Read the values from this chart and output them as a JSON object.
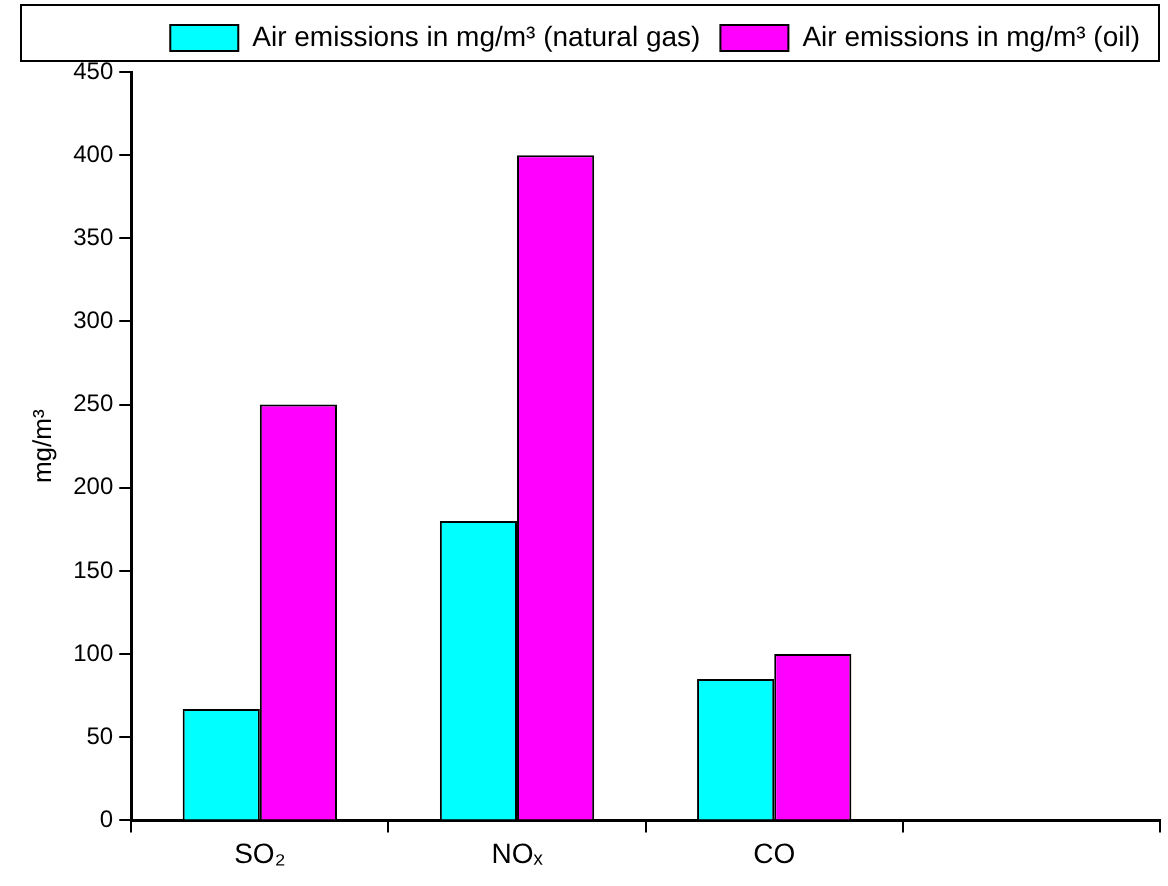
{
  "chart_data": {
    "type": "bar",
    "ylabel": "mg/m³",
    "categories": [
      "SO₂",
      "NOₓ",
      "CO",
      null
    ],
    "series": [
      {
        "name": "Air emissions in mg/m³ (natural gas)",
        "color": "#00ffff",
        "values": [
          67,
          180,
          85,
          null
        ]
      },
      {
        "name": "Air emissions in mg/m³ (oil)",
        "color": "#ff00ff",
        "values": [
          250,
          400,
          100,
          null
        ]
      }
    ],
    "ylim": [
      0,
      450
    ],
    "yticks": [
      0,
      50,
      100,
      150,
      200,
      250,
      300,
      350,
      400,
      450
    ],
    "grid": false,
    "legend": "top right"
  }
}
